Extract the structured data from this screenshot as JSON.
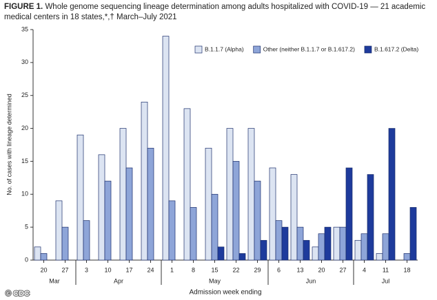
{
  "chart_data": {
    "type": "grouped_bar",
    "title_label": "FIGURE 1.",
    "title": "Whole genome sequencing lineage determination among adults hospitalized with COVID-19 — 21 academic medical centers in 18 states,*,† March–July 2021",
    "y_label": "No. of cases with lineage determined",
    "x_label": "Admission week ending",
    "categories": [
      "20",
      "27",
      "3",
      "10",
      "17",
      "24",
      "1",
      "8",
      "15",
      "22",
      "29",
      "6",
      "13",
      "20",
      "27",
      "4",
      "11",
      "18"
    ],
    "groups": [
      {
        "label": "Mar",
        "count": 2
      },
      {
        "label": "Apr",
        "count": 4
      },
      {
        "label": "May",
        "count": 5
      },
      {
        "label": "Jun",
        "count": 4
      },
      {
        "label": "Jul",
        "count": 3
      }
    ],
    "series": [
      {
        "name": "B.1.1.7 (Alpha)",
        "color": "#dce4f2",
        "values": [
          2,
          9,
          19,
          16,
          20,
          24,
          34,
          23,
          17,
          20,
          20,
          14,
          13,
          2,
          5,
          3,
          1,
          0
        ]
      },
      {
        "name": "Other (neither B.1.1.7 or B.1.617.2)",
        "color": "#8ea5d8",
        "values": [
          1,
          5,
          6,
          12,
          14,
          17,
          9,
          8,
          10,
          15,
          12,
          6,
          5,
          4,
          5,
          4,
          4,
          1
        ]
      },
      {
        "name": "B.1.617.2 (Delta)",
        "color": "#1e3b9c",
        "values": [
          0,
          0,
          0,
          0,
          0,
          0,
          0,
          0,
          2,
          1,
          3,
          5,
          3,
          5,
          14,
          13,
          20,
          8
        ]
      }
    ],
    "ylim": [
      0,
      35
    ],
    "yticks": [
      0,
      5,
      10,
      15,
      20,
      25,
      30,
      35
    ],
    "legend": "upper right",
    "watermark": "© CDC"
  }
}
